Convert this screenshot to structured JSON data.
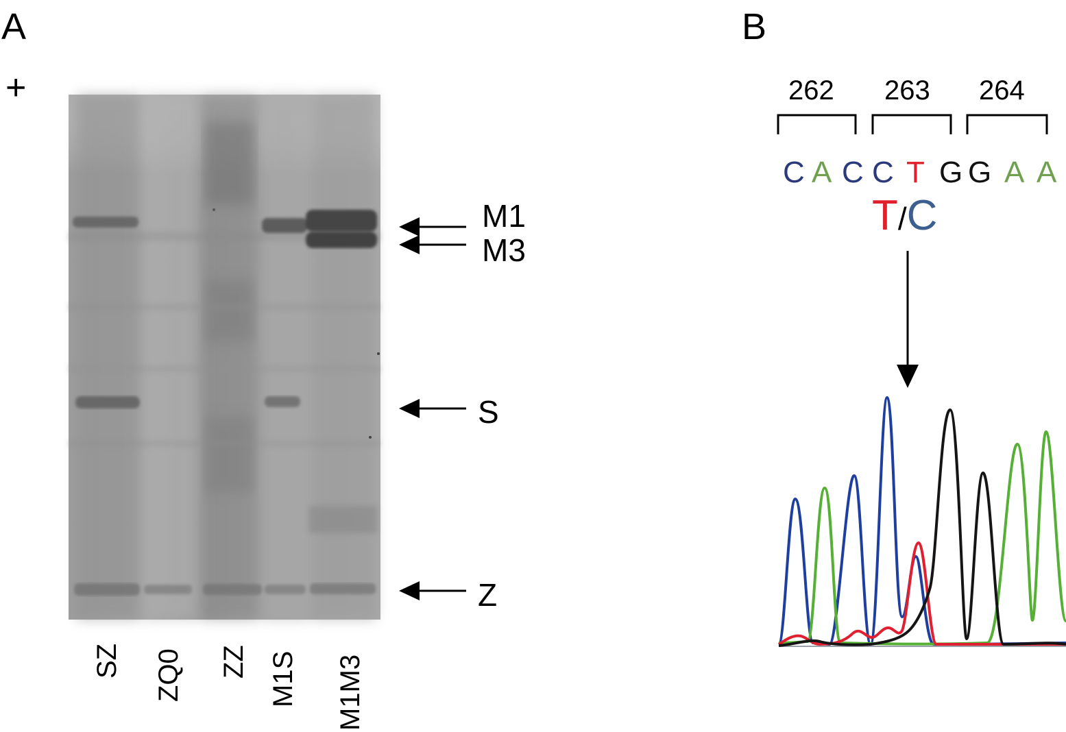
{
  "panel_a": {
    "letter": "A",
    "polarity": "+",
    "band_labels": {
      "m1": "M1",
      "m3": "M3",
      "s": "S",
      "z": "Z"
    },
    "lanes": [
      "SZ",
      "ZQ0",
      "ZZ",
      "M1S",
      "M1M3"
    ]
  },
  "panel_b": {
    "letter": "B",
    "codons": [
      "262",
      "263",
      "264"
    ],
    "sequence": [
      {
        "base": "C",
        "color": "#2b3a7a"
      },
      {
        "base": "A",
        "color": "#6fa050"
      },
      {
        "base": "C",
        "color": "#2b3a7a"
      },
      {
        "base": "C",
        "color": "#2b3a7a"
      },
      {
        "base": "T",
        "color": "#e0202a"
      },
      {
        "base": "G",
        "color": "#111111"
      },
      {
        "base": "G",
        "color": "#111111"
      },
      {
        "base": "A",
        "color": "#6fa050"
      },
      {
        "base": "A",
        "color": "#6fa050"
      }
    ],
    "mutation": {
      "ref": "T",
      "sep": "/",
      "alt": "C",
      "ref_color": "#e0202a",
      "alt_color": "#3d5f8f"
    },
    "trace_colors": {
      "C": "#1f3fa0",
      "A": "#55b035",
      "T": "#e02030",
      "G": "#151515"
    }
  }
}
